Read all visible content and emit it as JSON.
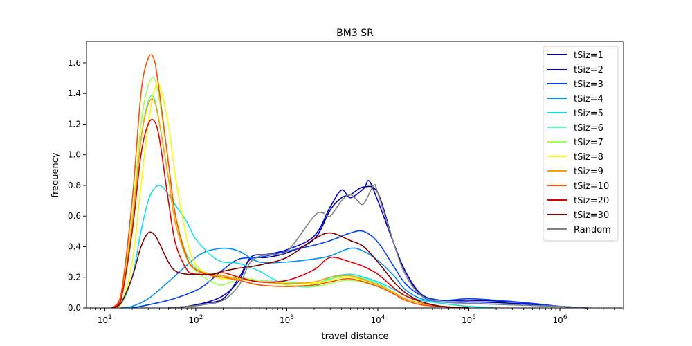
{
  "chart_data": {
    "type": "line",
    "title": "BM3 SR",
    "xlabel": "travel distance",
    "ylabel": "frequency",
    "xscale": "log",
    "xlim": [
      6.3,
      5000000
    ],
    "ylim": [
      0,
      1.74
    ],
    "xticks": [
      {
        "value": 10,
        "base": "10",
        "exp": "1"
      },
      {
        "value": 100,
        "base": "10",
        "exp": "2"
      },
      {
        "value": 1000,
        "base": "10",
        "exp": "3"
      },
      {
        "value": 10000,
        "base": "10",
        "exp": "4"
      },
      {
        "value": 100000,
        "base": "10",
        "exp": "5"
      },
      {
        "value": 1000000,
        "base": "10",
        "exp": "6"
      }
    ],
    "yticks": [
      "0.0",
      "0.2",
      "0.4",
      "0.6",
      "0.8",
      "1.0",
      "1.2",
      "1.4",
      "1.6"
    ],
    "grid": false,
    "legend_position": "upper right",
    "series": [
      {
        "name": "tSiz=1",
        "color": "#00008f",
        "x": [
          50,
          80,
          120,
          200,
          300,
          400,
          600,
          1000,
          2000,
          3000,
          4000,
          5000,
          7000,
          10000,
          15000,
          20000,
          30000,
          50000,
          100000,
          300000,
          1000000,
          2000000
        ],
        "y": [
          0,
          0.01,
          0.03,
          0.06,
          0.2,
          0.32,
          0.33,
          0.36,
          0.45,
          0.64,
          0.72,
          0.74,
          0.79,
          0.75,
          0.42,
          0.24,
          0.09,
          0.05,
          0.05,
          0.04,
          0.01,
          0
        ]
      },
      {
        "name": "tSiz=2",
        "color": "#0000c8",
        "x": [
          50,
          80,
          120,
          200,
          300,
          400,
          600,
          1000,
          2000,
          3000,
          4000,
          5000,
          7000,
          8000,
          10000,
          15000,
          20000,
          30000,
          50000,
          100000,
          300000,
          1000000,
          2000000
        ],
        "y": [
          0,
          0.01,
          0.03,
          0.08,
          0.18,
          0.33,
          0.35,
          0.38,
          0.47,
          0.66,
          0.77,
          0.72,
          0.78,
          0.83,
          0.7,
          0.42,
          0.24,
          0.08,
          0.04,
          0.04,
          0.03,
          0.01,
          0
        ]
      },
      {
        "name": "tSiz=3",
        "color": "#0040ff",
        "x": [
          20,
          30,
          50,
          80,
          120,
          200,
          300,
          500,
          700,
          1000,
          2000,
          3000,
          5000,
          7000,
          10000,
          15000,
          20000,
          30000,
          50000,
          100000,
          200000,
          500000,
          1000000,
          2000000
        ],
        "y": [
          0,
          0.02,
          0.05,
          0.09,
          0.14,
          0.25,
          0.32,
          0.33,
          0.35,
          0.37,
          0.41,
          0.44,
          0.49,
          0.5,
          0.43,
          0.27,
          0.16,
          0.08,
          0.05,
          0.06,
          0.05,
          0.03,
          0.01,
          0
        ]
      },
      {
        "name": "tSiz=4",
        "color": "#0090ff",
        "x": [
          15,
          20,
          30,
          50,
          80,
          120,
          200,
          300,
          500,
          1000,
          2000,
          3000,
          5000,
          7000,
          10000,
          15000,
          20000,
          30000,
          50000,
          100000,
          300000,
          1000000,
          2000000
        ],
        "y": [
          0,
          0.01,
          0.06,
          0.17,
          0.28,
          0.36,
          0.39,
          0.37,
          0.3,
          0.3,
          0.32,
          0.34,
          0.39,
          0.37,
          0.31,
          0.21,
          0.12,
          0.06,
          0.04,
          0.03,
          0.02,
          0.01,
          0
        ]
      },
      {
        "name": "tSiz=5",
        "color": "#10e0e0",
        "x": [
          12,
          15,
          20,
          25,
          30,
          35,
          40,
          45,
          50,
          60,
          80,
          100,
          150,
          200,
          300,
          500,
          700,
          1000,
          2000,
          3000,
          5000,
          7000,
          10000,
          15000,
          20000,
          30000,
          50000,
          100000,
          200000
        ],
        "y": [
          0,
          0.02,
          0.2,
          0.5,
          0.7,
          0.78,
          0.8,
          0.78,
          0.74,
          0.67,
          0.56,
          0.45,
          0.34,
          0.3,
          0.29,
          0.24,
          0.19,
          0.15,
          0.14,
          0.2,
          0.22,
          0.2,
          0.17,
          0.12,
          0.08,
          0.05,
          0.03,
          0.01,
          0
        ]
      },
      {
        "name": "tSiz=6",
        "color": "#50ffb0",
        "x": [
          12,
          15,
          20,
          25,
          30,
          35,
          40,
          50,
          60,
          80,
          100,
          150,
          200,
          300,
          500,
          1000,
          2000,
          3000,
          5000,
          10000,
          15000,
          20000,
          30000,
          50000,
          100000
        ],
        "y": [
          0,
          0.05,
          0.5,
          1.1,
          1.35,
          1.37,
          1.2,
          0.85,
          0.55,
          0.35,
          0.26,
          0.22,
          0.2,
          0.2,
          0.18,
          0.17,
          0.16,
          0.19,
          0.21,
          0.16,
          0.1,
          0.06,
          0.03,
          0.01,
          0
        ]
      },
      {
        "name": "tSiz=7",
        "color": "#a0ff50",
        "x": [
          12,
          15,
          20,
          25,
          30,
          35,
          40,
          50,
          60,
          80,
          100,
          150,
          200,
          300,
          500,
          1000,
          2000,
          3000,
          5000,
          10000,
          15000,
          20000,
          30000,
          50000,
          100000
        ],
        "y": [
          0,
          0.05,
          0.6,
          1.2,
          1.45,
          1.5,
          1.35,
          0.95,
          0.6,
          0.33,
          0.24,
          0.17,
          0.15,
          0.19,
          0.18,
          0.15,
          0.14,
          0.16,
          0.18,
          0.14,
          0.09,
          0.05,
          0.02,
          0.01,
          0
        ]
      },
      {
        "name": "tSiz=8",
        "color": "#f0ff00",
        "x": [
          12,
          15,
          20,
          25,
          30,
          35,
          40,
          50,
          60,
          80,
          100,
          150,
          200,
          300,
          500,
          1000,
          2000,
          3000,
          5000,
          10000,
          15000,
          20000,
          30000,
          50000,
          100000
        ],
        "y": [
          0,
          0.02,
          0.3,
          0.8,
          1.2,
          1.42,
          1.45,
          1.2,
          0.85,
          0.45,
          0.28,
          0.21,
          0.19,
          0.19,
          0.17,
          0.16,
          0.16,
          0.18,
          0.2,
          0.15,
          0.1,
          0.06,
          0.03,
          0.01,
          0
        ]
      },
      {
        "name": "tSiz=9",
        "color": "#ffa000",
        "x": [
          12,
          15,
          20,
          25,
          30,
          35,
          40,
          50,
          60,
          80,
          100,
          150,
          200,
          300,
          500,
          1000,
          2000,
          3000,
          5000,
          10000,
          15000,
          20000,
          30000,
          50000,
          100000
        ],
        "y": [
          0,
          0.05,
          0.55,
          1.1,
          1.33,
          1.35,
          1.2,
          0.85,
          0.55,
          0.32,
          0.25,
          0.22,
          0.21,
          0.19,
          0.17,
          0.16,
          0.17,
          0.2,
          0.21,
          0.15,
          0.1,
          0.06,
          0.03,
          0.01,
          0
        ]
      },
      {
        "name": "tSiz=10",
        "color": "#ff5000",
        "x": [
          12,
          15,
          20,
          25,
          30,
          35,
          40,
          50,
          60,
          80,
          100,
          150,
          200,
          300,
          500,
          1000,
          2000,
          3000,
          5000,
          10000,
          15000,
          20000,
          30000,
          50000,
          100000
        ],
        "y": [
          0,
          0.08,
          0.7,
          1.4,
          1.63,
          1.62,
          1.4,
          0.95,
          0.6,
          0.33,
          0.25,
          0.21,
          0.2,
          0.18,
          0.15,
          0.14,
          0.15,
          0.17,
          0.19,
          0.14,
          0.09,
          0.05,
          0.02,
          0.01,
          0
        ]
      },
      {
        "name": "tSiz=20",
        "color": "#e00000",
        "x": [
          12,
          15,
          20,
          25,
          30,
          35,
          40,
          50,
          60,
          80,
          100,
          150,
          200,
          300,
          500,
          1000,
          2000,
          3000,
          5000,
          7000,
          10000,
          15000,
          20000,
          30000,
          50000,
          100000
        ],
        "y": [
          0,
          0.05,
          0.5,
          1.0,
          1.2,
          1.22,
          1.1,
          0.7,
          0.42,
          0.25,
          0.22,
          0.22,
          0.23,
          0.2,
          0.17,
          0.18,
          0.25,
          0.33,
          0.3,
          0.27,
          0.22,
          0.13,
          0.08,
          0.04,
          0.01,
          0
        ]
      },
      {
        "name": "tSiz=30",
        "color": "#800000",
        "x": [
          12,
          15,
          20,
          25,
          30,
          35,
          40,
          50,
          60,
          80,
          100,
          150,
          200,
          300,
          500,
          1000,
          2000,
          3000,
          5000,
          7000,
          10000,
          15000,
          20000,
          30000,
          50000,
          100000
        ],
        "y": [
          0,
          0.03,
          0.2,
          0.4,
          0.49,
          0.48,
          0.42,
          0.3,
          0.24,
          0.22,
          0.22,
          0.22,
          0.24,
          0.26,
          0.28,
          0.33,
          0.45,
          0.49,
          0.44,
          0.4,
          0.3,
          0.17,
          0.1,
          0.04,
          0.01,
          0
        ]
      },
      {
        "name": "Random",
        "color": "#808080",
        "x": [
          50,
          80,
          120,
          200,
          300,
          400,
          600,
          1000,
          2000,
          2500,
          3000,
          4000,
          5000,
          6000,
          7000,
          9000,
          10000,
          15000,
          20000,
          30000,
          50000,
          100000,
          300000,
          1000000,
          2000000
        ],
        "y": [
          0,
          0.01,
          0.02,
          0.05,
          0.15,
          0.3,
          0.35,
          0.37,
          0.6,
          0.62,
          0.6,
          0.7,
          0.74,
          0.7,
          0.68,
          0.8,
          0.75,
          0.42,
          0.22,
          0.08,
          0.04,
          0.03,
          0.02,
          0.01,
          0
        ]
      }
    ]
  }
}
